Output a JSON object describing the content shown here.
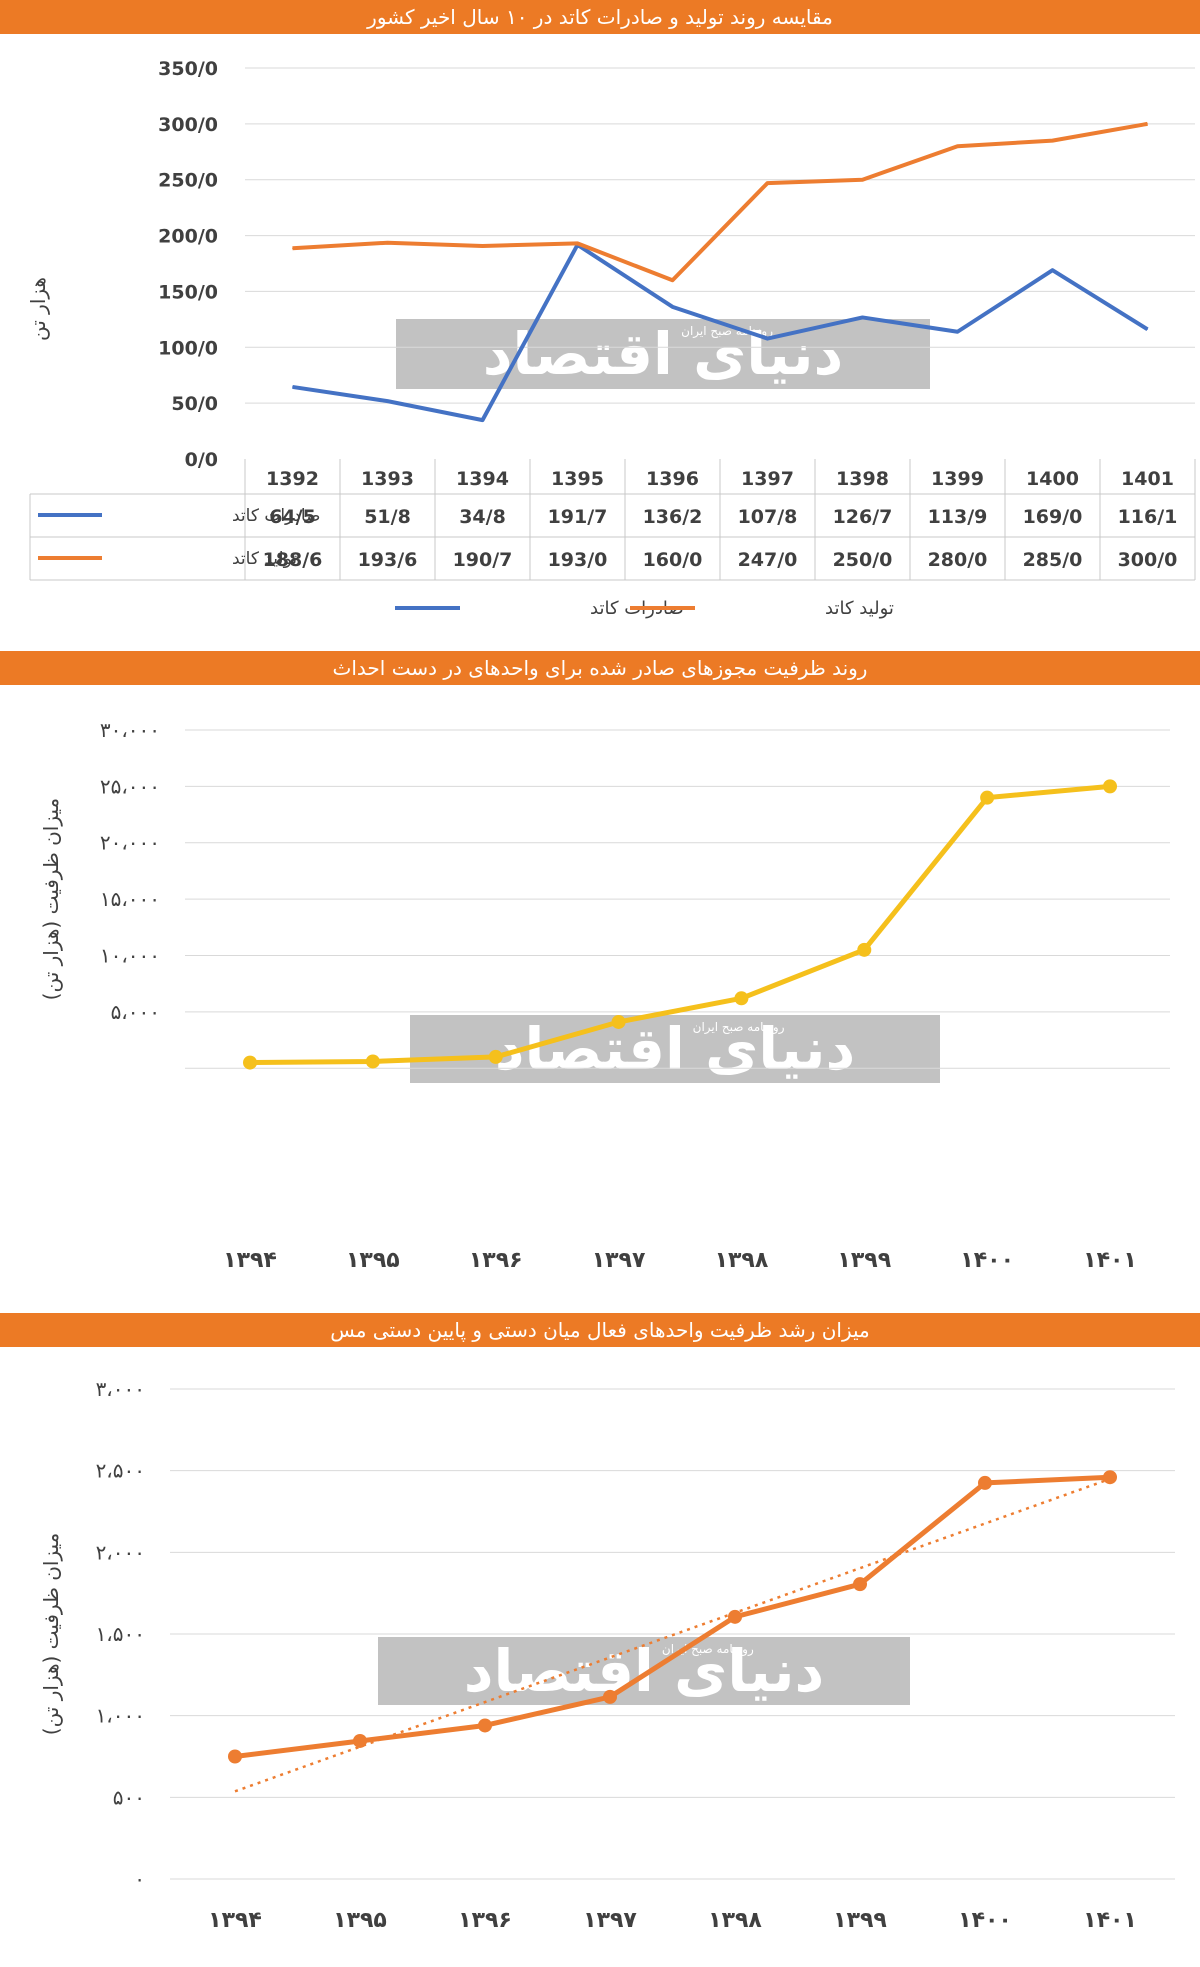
{
  "charts": {
    "c1": {
      "banner": "مقایسه روند تولید و صادرات کاتد در ۱۰ سال اخیر کشور"
    },
    "c2": {
      "banner": "روند ظرفیت مجوزهای صادر شده برای واحدهای در دست احداث"
    },
    "c3": {
      "banner": "میزان رشد ظرفیت واحدهای فعال میان دستی و پایین دستی مس"
    }
  },
  "watermark": {
    "brand": "دنیای اقتصاد",
    "sub": "روزنامه صبح ایران"
  },
  "chart_data": [
    {
      "type": "line",
      "title": "مقایسه روند تولید و صادرات کاتد در ۱۰ سال اخیر کشور",
      "ylabel": "هزار تن",
      "ylim": [
        0,
        350
      ],
      "yticks": [
        "0/0",
        "50/0",
        "100/0",
        "150/0",
        "200/0",
        "250/0",
        "300/0",
        "350/0"
      ],
      "categories": [
        "1392",
        "1393",
        "1394",
        "1395",
        "1396",
        "1397",
        "1398",
        "1399",
        "1400",
        "1401"
      ],
      "series": [
        {
          "name": "صادرات کاتد",
          "color": "#4472c4",
          "values": [
            64.5,
            51.8,
            34.8,
            191.7,
            136.2,
            107.8,
            126.7,
            113.9,
            169.0,
            116.1
          ],
          "labels": [
            "64/5",
            "51/8",
            "34/8",
            "191/7",
            "136/2",
            "107/8",
            "126/7",
            "113/9",
            "169/0",
            "116/1"
          ]
        },
        {
          "name": "تولید کاتد",
          "color": "#ed7d31",
          "values": [
            188.6,
            193.6,
            190.7,
            193.0,
            160.0,
            247.0,
            250.0,
            280.0,
            285.0,
            300.0
          ],
          "labels": [
            "188/6",
            "193/6",
            "190/7",
            "193/0",
            "160/0",
            "247/0",
            "250/0",
            "280/0",
            "285/0",
            "300/0"
          ]
        }
      ],
      "legend": "bottom",
      "grid": true
    },
    {
      "type": "line",
      "title": "روند ظرفیت مجوزهای صادر شده برای واحدهای در دست احداث",
      "ylabel": "میزان ظرفیت (هزار تن)",
      "ylim": [
        0,
        30000
      ],
      "yticks": [
        "",
        "۵،۰۰۰",
        "۱۰،۰۰۰",
        "۱۵،۰۰۰",
        "۲۰،۰۰۰",
        "۲۵،۰۰۰",
        "۳۰،۰۰۰"
      ],
      "categories": [
        "۱۳۹۴",
        "۱۳۹۵",
        "۱۳۹۶",
        "۱۳۹۷",
        "۱۳۹۸",
        "۱۳۹۹",
        "۱۴۰۰",
        "۱۴۰۱"
      ],
      "series": [
        {
          "color": "#f5c01c",
          "values": [
            500,
            600,
            1000,
            4100,
            6200,
            10500,
            24000,
            25000
          ]
        }
      ],
      "grid": true
    },
    {
      "type": "line",
      "title": "میزان رشد ظرفیت واحدهای فعال میان دستی و پایین دستی مس",
      "ylabel": "میزان ظرفیت (هزار تن)",
      "ylim": [
        0,
        3000
      ],
      "yticks": [
        "۰",
        "۵۰۰",
        "۱،۰۰۰",
        "۱،۵۰۰",
        "۲،۰۰۰",
        "۲،۵۰۰",
        "۳،۰۰۰"
      ],
      "categories": [
        "۱۳۹۴",
        "۱۳۹۵",
        "۱۳۹۶",
        "۱۳۹۷",
        "۱۳۹۸",
        "۱۳۹۹",
        "۱۴۰۰",
        "۱۴۰۱"
      ],
      "series": [
        {
          "color": "#ed7d31",
          "values": [
            750,
            845,
            940,
            1115,
            1605,
            1805,
            2425,
            2460
          ]
        }
      ],
      "trendline": true,
      "grid": true
    }
  ]
}
